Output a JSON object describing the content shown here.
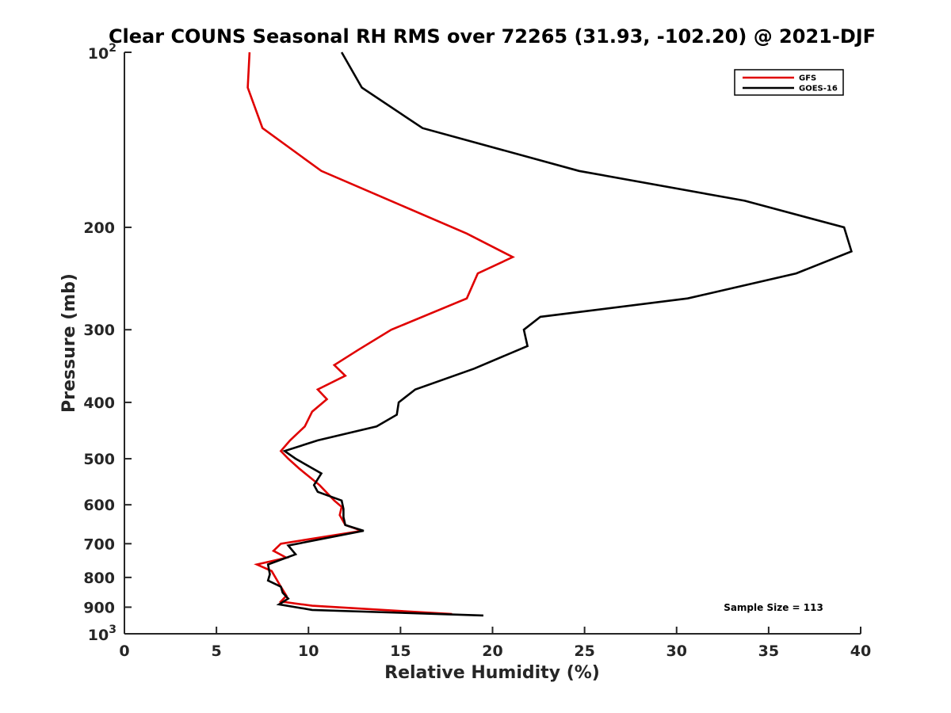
{
  "chart_data": {
    "type": "line",
    "title": "Clear COUNS Seasonal RH RMS over 72265 (31.93, -102.20) @ 2021-DJF",
    "xlabel": "Relative Humidity (%)",
    "ylabel": "Pressure (mb)",
    "xlim": [
      0,
      40
    ],
    "ylim": [
      100,
      1000
    ],
    "yscale": "log",
    "y_reversed": true,
    "grid": false,
    "legend_position": "top-right",
    "x_ticks": [
      0,
      5,
      10,
      15,
      20,
      25,
      30,
      35,
      40
    ],
    "x_tick_labels": [
      "0",
      "5",
      "10",
      "15",
      "20",
      "25",
      "30",
      "35",
      "40"
    ],
    "y_ticks": [
      200,
      300,
      400,
      500,
      600,
      700,
      800,
      900
    ],
    "y_tick_labels": [
      "200",
      "300",
      "400",
      "500",
      "600",
      "700",
      "800",
      "900"
    ],
    "y_decade_ticks": [
      {
        "value": 100,
        "base": "10",
        "exp": "2"
      },
      {
        "value": 1000,
        "base": "10",
        "exp": "3"
      }
    ],
    "annotation": "Sample Size = 113",
    "series": [
      {
        "name": "GFS",
        "color": "#e00000",
        "x": [
          6.8,
          6.7,
          7.5,
          10.7,
          18.6,
          21.1,
          19.2,
          18.6,
          14.5,
          12.7,
          11.4,
          12.0,
          10.5,
          11.0,
          10.2,
          9.8,
          9.0,
          8.5,
          8.9,
          9.5,
          10.6,
          11.4,
          11.8,
          11.7,
          12.0,
          12.9,
          8.5,
          8.1,
          8.8,
          7.2,
          8.0,
          8.5,
          8.8,
          8.5,
          10.2,
          17.8
        ],
        "y": [
          100,
          115,
          135,
          160,
          205,
          225,
          240,
          265,
          300,
          325,
          345,
          360,
          380,
          395,
          415,
          440,
          465,
          485,
          500,
          520,
          555,
          590,
          605,
          625,
          650,
          665,
          700,
          720,
          740,
          760,
          780,
          830,
          860,
          880,
          895,
          925
        ]
      },
      {
        "name": "GOES-16",
        "color": "#000000",
        "x": [
          11.8,
          12.9,
          16.2,
          24.7,
          33.7,
          39.1,
          39.5,
          36.5,
          30.6,
          22.6,
          21.7,
          21.9,
          19.0,
          15.8,
          14.9,
          14.8,
          13.7,
          10.5,
          8.7,
          9.3,
          10.7,
          10.3,
          10.5,
          11.8,
          11.9,
          11.9,
          12.0,
          13.0,
          8.9,
          9.3,
          7.8,
          7.9,
          7.8,
          8.5,
          8.6,
          8.9,
          8.4,
          10.2,
          19.5
        ],
        "y": [
          100,
          115,
          135,
          160,
          180,
          200,
          220,
          240,
          265,
          285,
          300,
          320,
          350,
          380,
          400,
          420,
          440,
          465,
          485,
          500,
          530,
          555,
          570,
          590,
          610,
          630,
          650,
          665,
          705,
          730,
          760,
          790,
          810,
          830,
          850,
          870,
          890,
          910,
          930
        ]
      }
    ]
  }
}
